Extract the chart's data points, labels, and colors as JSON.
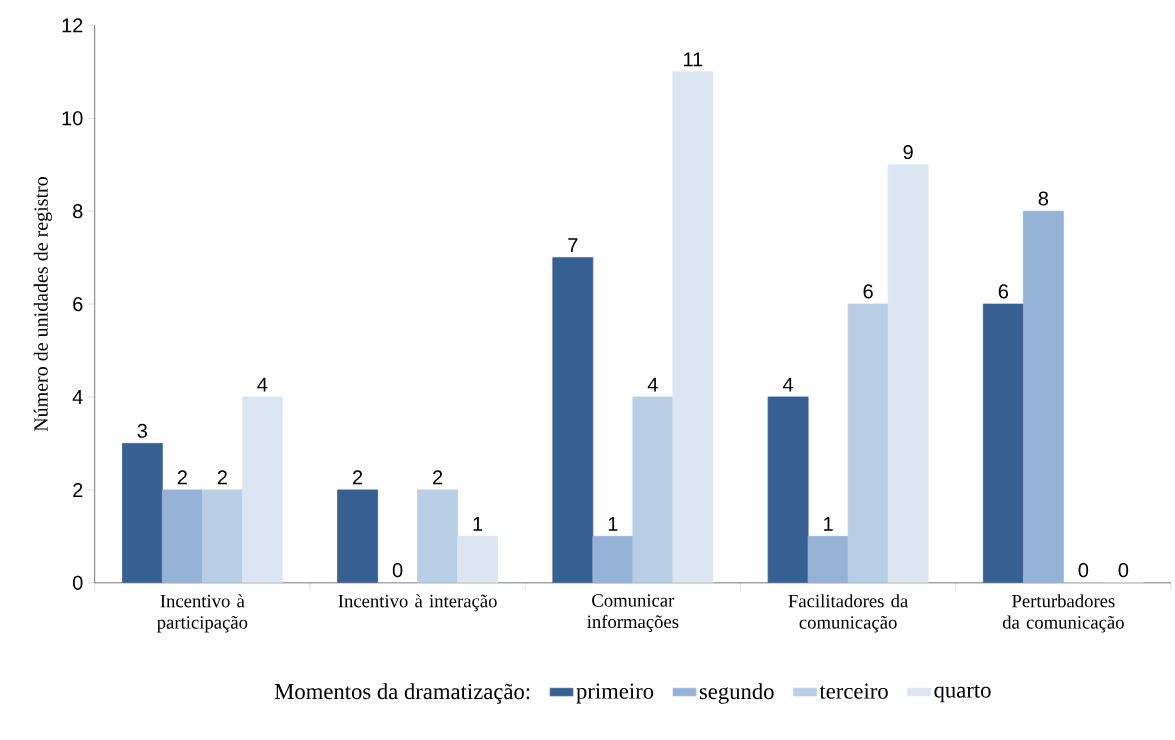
{
  "chart_data": {
    "type": "bar",
    "ylabel": "Número de unidades de registro",
    "legend_title": "Momentos da dramatização:",
    "categories": [
      "Incentivo à participação",
      "Incentivo à interação",
      "Comunicar informações",
      "Facilitadores da comunicação",
      "Perturbadores da comunicação"
    ],
    "series": [
      {
        "name": "primeiro",
        "color": "#376092",
        "values": [
          3,
          2,
          7,
          4,
          6
        ]
      },
      {
        "name": "segundo",
        "color": "#95b3d7",
        "values": [
          2,
          0,
          1,
          1,
          8
        ]
      },
      {
        "name": "terceiro",
        "color": "#b9cde5",
        "values": [
          2,
          2,
          4,
          6,
          0
        ]
      },
      {
        "name": "quarto",
        "color": "#dce6f2",
        "values": [
          4,
          1,
          11,
          9,
          0
        ]
      }
    ],
    "ylim": [
      0,
      12
    ],
    "yticks": [
      0,
      2,
      4,
      6,
      8,
      10,
      12
    ],
    "grid": false,
    "legend": "bottom",
    "data_labels": true
  }
}
